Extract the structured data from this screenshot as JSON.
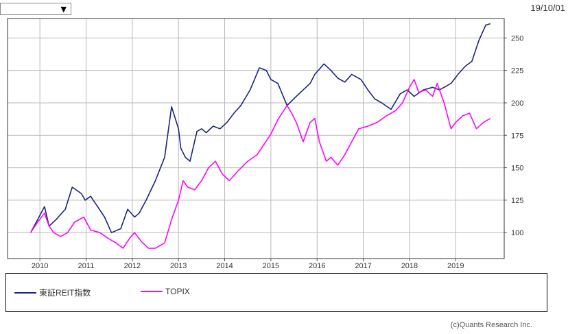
{
  "date": "19/10/01",
  "dropdown": {
    "arrow": "▼"
  },
  "credit": "(c)Quants Research Inc.",
  "chart_data": {
    "type": "line",
    "x_ticks": [
      "2010",
      "2011",
      "2012",
      "2013",
      "2014",
      "2015",
      "2016",
      "2017",
      "2018",
      "2019"
    ],
    "y_ticks": [
      100,
      125,
      150,
      175,
      200,
      225,
      250
    ],
    "ylim": [
      80,
      265
    ],
    "xlim": [
      2009.3,
      2020.05
    ],
    "grid": true,
    "legend_placement": "bottom",
    "series": [
      {
        "name": "東証REIT指数",
        "color": "#1a237e",
        "x": [
          2009.8,
          2009.95,
          2010.1,
          2010.2,
          2010.35,
          2010.55,
          2010.7,
          2010.9,
          2010.98,
          2011.1,
          2011.25,
          2011.4,
          2011.55,
          2011.75,
          2011.9,
          2012.05,
          2012.15,
          2012.3,
          2012.5,
          2012.7,
          2012.85,
          2013.0,
          2013.05,
          2013.15,
          2013.25,
          2013.4,
          2013.5,
          2013.6,
          2013.75,
          2013.9,
          2014.05,
          2014.2,
          2014.35,
          2014.55,
          2014.75,
          2014.9,
          2015.0,
          2015.15,
          2015.35,
          2015.55,
          2015.7,
          2015.85,
          2015.95,
          2016.15,
          2016.3,
          2016.45,
          2016.6,
          2016.75,
          2016.95,
          2017.1,
          2017.25,
          2017.4,
          2017.6,
          2017.8,
          2017.95,
          2018.1,
          2018.3,
          2018.5,
          2018.65,
          2018.8,
          2018.9,
          2019.05,
          2019.2,
          2019.35,
          2019.5,
          2019.65,
          2019.75
        ],
        "y": [
          100,
          110,
          120,
          105,
          110,
          118,
          135,
          130,
          125,
          128,
          120,
          112,
          100,
          103,
          118,
          112,
          115,
          125,
          140,
          158,
          197,
          180,
          165,
          158,
          155,
          178,
          180,
          177,
          182,
          180,
          185,
          192,
          198,
          210,
          227,
          225,
          218,
          215,
          198,
          205,
          210,
          215,
          222,
          230,
          225,
          219,
          216,
          222,
          218,
          210,
          203,
          200,
          195,
          207,
          210,
          205,
          210,
          212,
          210,
          213,
          215,
          222,
          228,
          232,
          248,
          260,
          261
        ]
      },
      {
        "name": "TOPIX",
        "color": "#ff00ff",
        "x": [
          2009.8,
          2009.95,
          2010.1,
          2010.2,
          2010.3,
          2010.45,
          2010.6,
          2010.75,
          2010.95,
          2011.1,
          2011.3,
          2011.5,
          2011.65,
          2011.8,
          2011.95,
          2012.05,
          2012.2,
          2012.35,
          2012.5,
          2012.7,
          2012.85,
          2013.0,
          2013.1,
          2013.2,
          2013.35,
          2013.5,
          2013.65,
          2013.8,
          2013.95,
          2014.1,
          2014.3,
          2014.5,
          2014.7,
          2014.85,
          2015.0,
          2015.15,
          2015.35,
          2015.45,
          2015.55,
          2015.7,
          2015.85,
          2015.95,
          2016.05,
          2016.2,
          2016.3,
          2016.45,
          2016.6,
          2016.75,
          2016.9,
          2017.1,
          2017.3,
          2017.5,
          2017.7,
          2017.85,
          2018.0,
          2018.1,
          2018.2,
          2018.35,
          2018.5,
          2018.6,
          2018.75,
          2018.9,
          2019.0,
          2019.15,
          2019.3,
          2019.45,
          2019.6,
          2019.75
        ],
        "y": [
          100,
          108,
          115,
          105,
          100,
          97,
          100,
          108,
          112,
          102,
          100,
          95,
          92,
          88,
          96,
          100,
          93,
          88,
          88,
          92,
          110,
          125,
          140,
          135,
          133,
          140,
          150,
          155,
          145,
          140,
          148,
          155,
          160,
          168,
          176,
          187,
          198,
          192,
          185,
          170,
          185,
          188,
          170,
          155,
          158,
          152,
          160,
          170,
          180,
          182,
          185,
          190,
          194,
          200,
          212,
          218,
          208,
          210,
          205,
          215,
          200,
          180,
          185,
          190,
          192,
          180,
          185,
          188
        ]
      }
    ]
  }
}
